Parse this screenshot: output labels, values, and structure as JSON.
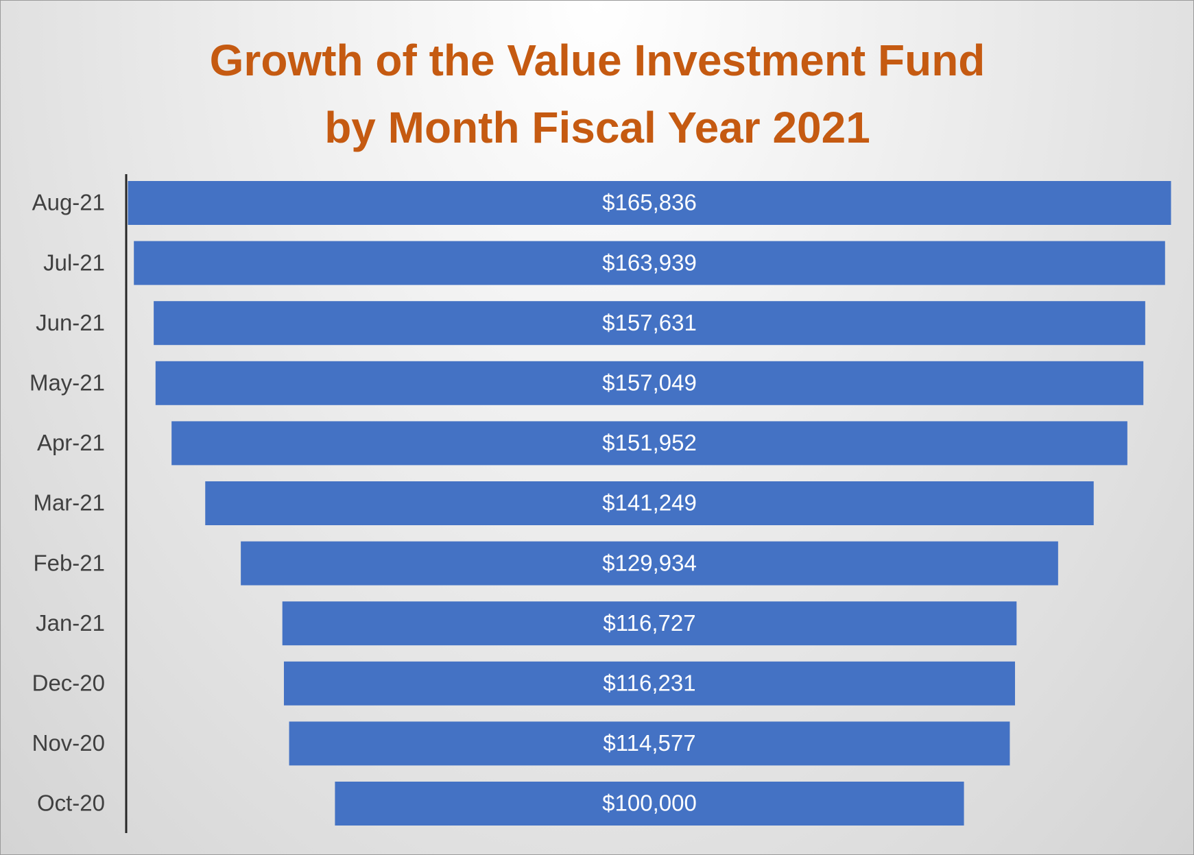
{
  "chart_data": {
    "type": "funnel",
    "title": "Growth of the Value Investment Fund by Month Fiscal Year 2021",
    "categories": [
      "Aug-21",
      "Jul-21",
      "Jun-21",
      "May-21",
      "Apr-21",
      "Mar-21",
      "Feb-21",
      "Jan-21",
      "Dec-20",
      "Nov-20",
      "Oct-20"
    ],
    "values": [
      165836,
      163939,
      157631,
      157049,
      151952,
      141249,
      129934,
      116727,
      116231,
      114577,
      100000
    ],
    "value_labels": [
      "$165,836",
      "$163,939",
      "$157,631",
      "$157,049",
      "$151,952",
      "$141,249",
      "$129,934",
      "$116,727",
      "$116,231",
      "$114,577",
      "$100,000"
    ],
    "color": "#4472c4"
  }
}
